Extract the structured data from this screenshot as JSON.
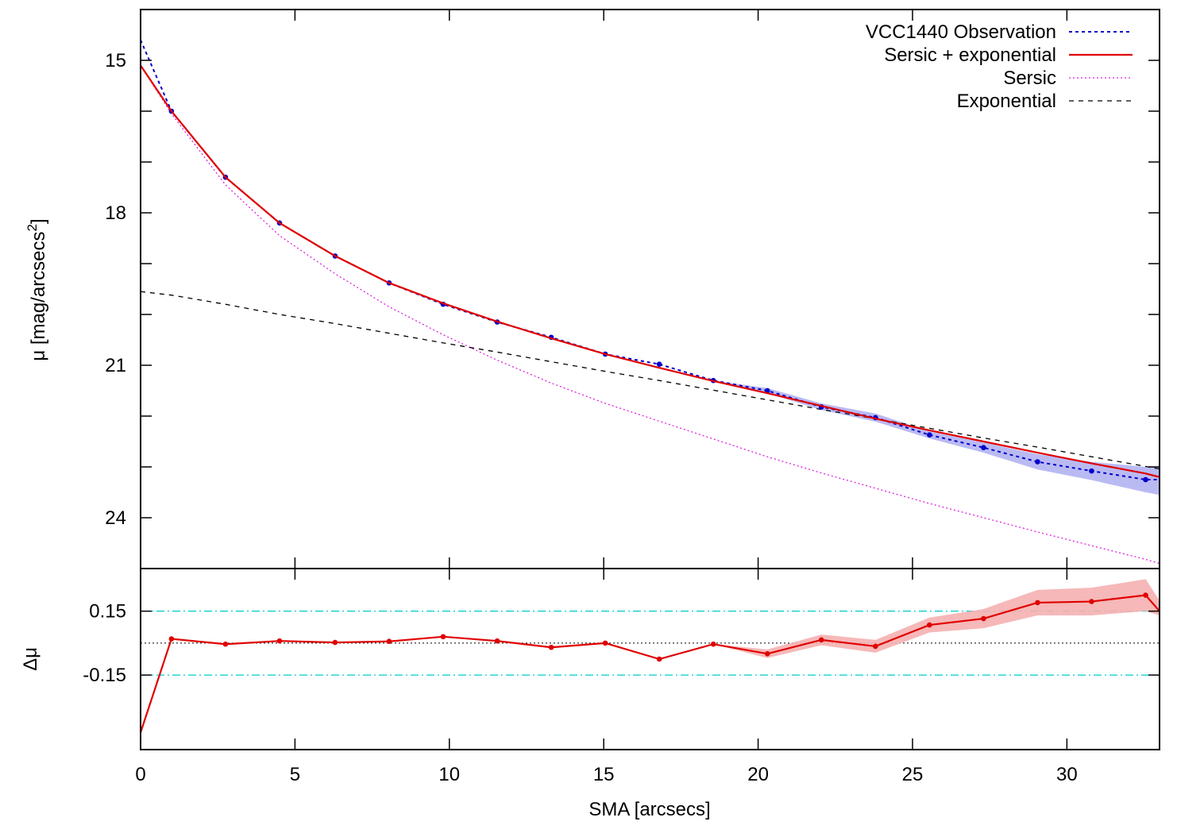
{
  "chart_data": [
    {
      "type": "line",
      "panel": "top",
      "xlim": [
        0,
        33
      ],
      "ylim": [
        25,
        14
      ],
      "y_axis_inverted": true,
      "ylabel_prefix": "μ [mag/arcsecs",
      "ylabel_sup": "2",
      "ylabel_suffix": "]",
      "yticks": [
        15,
        18,
        21,
        24
      ],
      "y_minor_ticks": [
        14,
        16,
        17,
        19,
        20,
        22,
        23
      ],
      "grid": false,
      "legend_position": "top-right",
      "series": [
        {
          "name": "VCC1440 Observation",
          "style": "dotted-line-with-points",
          "color": "#0000cc",
          "band_color": "#b3b3f2",
          "x": [
            0,
            1.0,
            2.75,
            4.5,
            6.3,
            8.05,
            9.8,
            11.55,
            13.3,
            15.05,
            16.8,
            18.55,
            20.3,
            22.05,
            23.8,
            25.55,
            27.3,
            29.05,
            30.8,
            32.55,
            33.0
          ],
          "y": [
            14.6,
            16.0,
            17.3,
            18.2,
            18.85,
            19.38,
            19.8,
            20.15,
            20.45,
            20.78,
            20.98,
            21.3,
            21.5,
            21.82,
            22.03,
            22.37,
            22.62,
            22.9,
            23.08,
            23.25,
            23.25
          ],
          "band_low": [
            14.6,
            16.0,
            17.3,
            18.2,
            18.85,
            19.38,
            19.8,
            20.15,
            20.45,
            20.78,
            20.98,
            21.3,
            21.45,
            21.75,
            21.95,
            22.3,
            22.52,
            22.75,
            22.9,
            23.0,
            23.0
          ],
          "band_high": [
            14.6,
            16.0,
            17.3,
            18.2,
            18.85,
            19.38,
            19.8,
            20.15,
            20.45,
            20.78,
            20.98,
            21.3,
            21.55,
            21.88,
            22.11,
            22.44,
            22.72,
            23.05,
            23.26,
            23.5,
            23.55
          ]
        },
        {
          "name": "Sersic + exponential",
          "style": "solid",
          "color": "#e00000",
          "x": [
            0,
            1.0,
            2.75,
            4.5,
            6.3,
            8.05,
            9.8,
            11.55,
            13.3,
            15.05,
            16.8,
            18.55,
            20.3,
            22.05,
            23.8,
            25.55,
            27.3,
            29.05,
            30.8,
            32.55,
            33.0
          ],
          "y": [
            15.1,
            16.0,
            17.3,
            18.2,
            18.85,
            19.38,
            19.78,
            20.14,
            20.47,
            20.78,
            21.05,
            21.31,
            21.55,
            21.8,
            22.05,
            22.28,
            22.5,
            22.72,
            22.93,
            23.13,
            23.2
          ]
        },
        {
          "name": "Sersic",
          "style": "dotted",
          "color": "#dd22dd",
          "x": [
            0,
            1.0,
            2.75,
            4.5,
            6.3,
            8.05,
            9.8,
            11.55,
            13.3,
            15.05,
            16.8,
            18.55,
            20.3,
            22.05,
            23.8,
            25.55,
            27.3,
            29.05,
            30.8,
            32.55,
            33.0
          ],
          "y": [
            15.1,
            16.05,
            17.45,
            18.45,
            19.2,
            19.85,
            20.4,
            20.9,
            21.35,
            21.75,
            22.1,
            22.45,
            22.8,
            23.12,
            23.42,
            23.72,
            24.0,
            24.28,
            24.55,
            24.82,
            24.9
          ]
        },
        {
          "name": "Exponential",
          "style": "dashed",
          "color": "#000000",
          "x": [
            0,
            1.0,
            2.75,
            4.5,
            6.3,
            8.05,
            9.8,
            11.55,
            13.3,
            15.05,
            16.8,
            18.55,
            20.3,
            22.05,
            23.8,
            25.55,
            27.3,
            29.05,
            30.8,
            32.55,
            33.0
          ],
          "y": [
            19.55,
            19.62,
            19.8,
            20.0,
            20.18,
            20.37,
            20.56,
            20.74,
            20.93,
            21.12,
            21.3,
            21.49,
            21.68,
            21.87,
            22.05,
            22.24,
            22.43,
            22.61,
            22.8,
            22.99,
            23.04
          ]
        }
      ]
    },
    {
      "type": "line",
      "panel": "bottom",
      "xlim": [
        0,
        33
      ],
      "ylim": [
        -0.5,
        0.35
      ],
      "xlabel": "SMA [arcsecs]",
      "ylabel": "Δμ",
      "xticks": [
        0,
        5,
        10,
        15,
        20,
        25,
        30
      ],
      "yticks": [
        0.15,
        -0.15
      ],
      "ytick_labels": [
        "0.15",
        "-0.15"
      ],
      "reference_lines": [
        {
          "y": 0.15,
          "style": "dash-dot",
          "color": "#00cccc"
        },
        {
          "y": -0.15,
          "style": "dash-dot",
          "color": "#00cccc"
        },
        {
          "y": 0.0,
          "style": "dotted",
          "color": "#000000"
        }
      ],
      "series": [
        {
          "name": "",
          "style": "solid-with-points",
          "color": "#e00000",
          "band_color": "#f5b0b0",
          "x": [
            0,
            1.0,
            2.75,
            4.5,
            6.3,
            8.05,
            9.8,
            11.55,
            13.3,
            15.05,
            16.8,
            18.55,
            20.3,
            22.05,
            23.8,
            25.55,
            27.3,
            29.05,
            30.8,
            32.55,
            33.0
          ],
          "y": [
            -0.42,
            0.02,
            -0.005,
            0.01,
            0.003,
            0.008,
            0.03,
            0.01,
            -0.02,
            0.0,
            -0.075,
            -0.005,
            -0.05,
            0.015,
            -0.015,
            0.085,
            0.115,
            0.19,
            0.195,
            0.225,
            0.15
          ],
          "band_low": [
            -0.42,
            0.02,
            -0.005,
            0.01,
            0.003,
            0.008,
            0.03,
            0.01,
            -0.02,
            0.0,
            -0.075,
            -0.005,
            -0.07,
            -0.01,
            -0.045,
            0.05,
            0.07,
            0.13,
            0.13,
            0.15,
            0.13
          ],
          "band_high": [
            -0.42,
            0.02,
            -0.005,
            0.01,
            0.003,
            0.008,
            0.03,
            0.01,
            -0.02,
            0.0,
            -0.075,
            -0.005,
            -0.03,
            0.04,
            0.015,
            0.12,
            0.16,
            0.25,
            0.26,
            0.3,
            0.2
          ]
        }
      ]
    }
  ]
}
